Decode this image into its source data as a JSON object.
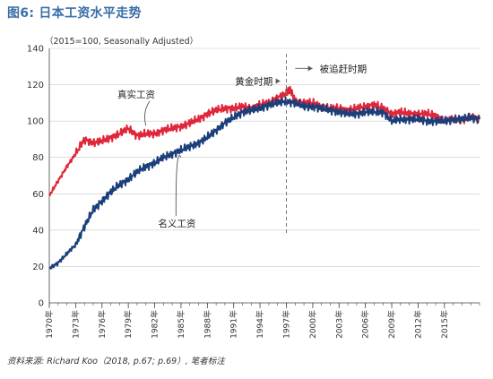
{
  "page_title": "图6: 日本工资水平走势",
  "source_note": "资料来源: Richard Koo（2018, p.67; p.69）, 笔者标注",
  "colors": {
    "title": "#3a6fa8",
    "nominal": "#1c3f7a",
    "real": "#e0263a",
    "axis": "#444444",
    "grid": "#c8c8c8"
  },
  "chart_data": {
    "type": "line",
    "subtitle": "（2015=100, Seasonally Adjusted）",
    "ylim": [
      0,
      140
    ],
    "yticks": [
      0,
      20,
      40,
      60,
      80,
      100,
      120,
      140
    ],
    "xlim": [
      1970,
      2019
    ],
    "xticks": [
      "1970年",
      "1973年",
      "1976年",
      "1979年",
      "1982年",
      "1985年",
      "1988年",
      "1991年",
      "1994年",
      "1997年",
      "2000年",
      "2003年",
      "2006年",
      "2009年",
      "2012年",
      "2015年"
    ],
    "grid": "y",
    "series": [
      {
        "name": "真实工资",
        "color": "#e0263a",
        "x": [
          1970,
          1971,
          1972,
          1973,
          1974,
          1975,
          1976,
          1977,
          1978,
          1979,
          1980,
          1981,
          1982,
          1983,
          1984,
          1985,
          1986,
          1987,
          1988,
          1989,
          1990,
          1991,
          1992,
          1993,
          1994,
          1995,
          1996,
          1997,
          1997.5,
          1998,
          1999,
          2000,
          2001,
          2002,
          2003,
          2004,
          2005,
          2006,
          2007,
          2008,
          2009,
          2010,
          2011,
          2012,
          2013,
          2014,
          2015,
          2016,
          2017,
          2018,
          2019
        ],
        "y": [
          59,
          67,
          75,
          82,
          90,
          88,
          89,
          91,
          93,
          96,
          92,
          93,
          93,
          95,
          96,
          97,
          99,
          101,
          104,
          106,
          107,
          107,
          108,
          107,
          109,
          110,
          113,
          115,
          117,
          111,
          110,
          110,
          108,
          107,
          107,
          106,
          107,
          108,
          109,
          107,
          104,
          105,
          104,
          104,
          104,
          103,
          100,
          101,
          101,
          102,
          101
        ]
      },
      {
        "name": "名义工资",
        "color": "#1c3f7a",
        "x": [
          1970,
          1971,
          1972,
          1973,
          1974,
          1975,
          1976,
          1977,
          1978,
          1979,
          1980,
          1981,
          1982,
          1983,
          1984,
          1985,
          1986,
          1987,
          1988,
          1989,
          1990,
          1991,
          1992,
          1993,
          1994,
          1995,
          1996,
          1997,
          1998,
          1999,
          2000,
          2001,
          2002,
          2003,
          2004,
          2005,
          2006,
          2007,
          2008,
          2009,
          2010,
          2011,
          2012,
          2013,
          2014,
          2015,
          2016,
          2017,
          2018,
          2019
        ],
        "y": [
          19,
          22,
          27,
          32,
          42,
          51,
          56,
          61,
          65,
          68,
          72,
          75,
          77,
          80,
          82,
          84,
          86,
          88,
          91,
          95,
          99,
          102,
          105,
          106,
          107,
          109,
          110,
          111,
          110,
          108,
          108,
          107,
          106,
          105,
          104,
          104,
          105,
          105,
          105,
          100,
          101,
          101,
          101,
          100,
          100,
          100,
          101,
          101,
          102,
          101
        ]
      }
    ],
    "annotations": [
      {
        "label": "真实工资",
        "series": "真实工资",
        "text_x": 1980,
        "text_y": 113,
        "point_x": 1981,
        "point_y": 96
      },
      {
        "label": "名义工资",
        "series": "名义工资",
        "text_x": 1983,
        "text_y": 42,
        "point_x": 1985,
        "point_y": 82
      },
      {
        "label": "黄金时期",
        "text_x": 1993,
        "text_y": 122,
        "point_x": 1996.3,
        "point_y": 122
      },
      {
        "label": "被追赶时期",
        "text_x": 2001,
        "text_y": 129,
        "point_x": 1998,
        "point_y": 129
      }
    ],
    "marker_line_x": 1997
  }
}
